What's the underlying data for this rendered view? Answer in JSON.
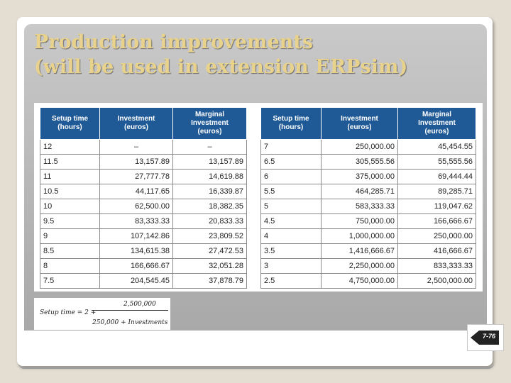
{
  "slide": {
    "title_lines": [
      "Production improvements",
      "(will be used in extension ERPsim)"
    ],
    "page_number": "7-76"
  },
  "tables": {
    "left": {
      "headers": [
        "Setup time\n(hours)",
        "Investment\n(euros)",
        "Marginal\nInvestment\n(euros)"
      ],
      "rows": [
        [
          "12",
          "–",
          "–"
        ],
        [
          "11.5",
          "13,157.89",
          "13,157.89"
        ],
        [
          "11",
          "27,777.78",
          "14,619.88"
        ],
        [
          "10.5",
          "44,117.65",
          "16,339.87"
        ],
        [
          "10",
          "62,500.00",
          "18,382.35"
        ],
        [
          "9.5",
          "83,333.33",
          "20,833.33"
        ],
        [
          "9",
          "107,142.86",
          "23,809.52"
        ],
        [
          "8.5",
          "134,615.38",
          "27,472.53"
        ],
        [
          "8",
          "166,666.67",
          "32,051.28"
        ],
        [
          "7.5",
          "204,545.45",
          "37,878.79"
        ]
      ]
    },
    "right": {
      "headers": [
        "Setup time\n(hours)",
        "Investment\n(euros)",
        "Marginal\nInvestment\n(euros)"
      ],
      "rows": [
        [
          "7",
          "250,000.00",
          "45,454.55"
        ],
        [
          "6.5",
          "305,555.56",
          "55,555.56"
        ],
        [
          "6",
          "375,000.00",
          "69,444.44"
        ],
        [
          "5.5",
          "464,285.71",
          "89,285.71"
        ],
        [
          "5",
          "583,333.33",
          "119,047.62"
        ],
        [
          "4.5",
          "750,000.00",
          "166,666.67"
        ],
        [
          "4",
          "1,000,000.00",
          "250,000.00"
        ],
        [
          "3.5",
          "1,416,666.67",
          "416,666.67"
        ],
        [
          "3",
          "2,250,000.00",
          "833,333.33"
        ],
        [
          "2.5",
          "4,750,000.00",
          "2,500,000.00"
        ]
      ]
    }
  },
  "formula": {
    "lhs": "Setup time = 2 +",
    "numerator": "2,500,000",
    "denominator": "250,000 + Investments"
  }
}
